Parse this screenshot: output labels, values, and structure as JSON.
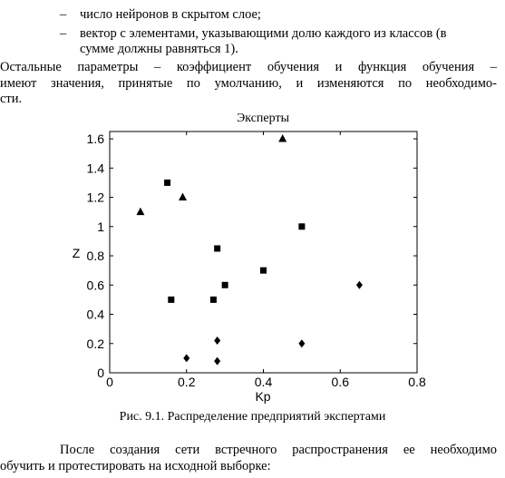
{
  "document": {
    "bullets": [
      {
        "dash": "–",
        "lines": [
          "число нейронов в скрытом слое;"
        ]
      },
      {
        "dash": "–",
        "lines": [
          "вектор с элементами, указывающими долю каждого из классов (в",
          "сумме должны равняться 1)."
        ]
      }
    ],
    "paragraph1": [
      "Остальные параметры – коэффициент обучения и функция обучения –",
      "имеют значения,  принятые по умолчанию, и изменяются по необходимо-",
      "сти."
    ],
    "caption": "Рис. 9.1. Распределение предприятий экспертами",
    "paragraph2": [
      "После создания сети встречного распространения ее необходимо",
      "обучить и протестировать на исходной выборке:"
    ]
  },
  "chart_data": {
    "type": "scatter",
    "title": "Эксперты",
    "xlabel": "Kp",
    "ylabel": "Z",
    "xlim": [
      0,
      0.8
    ],
    "ylim": [
      0,
      1.65
    ],
    "xticks": [
      "0",
      "0.2",
      "0.4",
      "0.6",
      "0.8"
    ],
    "yticks": [
      "0",
      "0.2",
      "0.4",
      "0.6",
      "0.8",
      "1",
      "1.2",
      "1.4",
      "1.6"
    ],
    "grid": false,
    "series": [
      {
        "marker": "triangle",
        "points": [
          [
            0.08,
            1.1
          ],
          [
            0.19,
            1.2
          ],
          [
            0.45,
            1.6
          ]
        ]
      },
      {
        "marker": "square",
        "points": [
          [
            0.15,
            1.3
          ],
          [
            0.28,
            0.85
          ],
          [
            0.5,
            1.0
          ],
          [
            0.4,
            0.7
          ],
          [
            0.3,
            0.6
          ],
          [
            0.16,
            0.5
          ],
          [
            0.27,
            0.5
          ]
        ]
      },
      {
        "marker": "diamond",
        "points": [
          [
            0.2,
            0.1
          ],
          [
            0.28,
            0.22
          ],
          [
            0.28,
            0.08
          ],
          [
            0.5,
            0.2
          ],
          [
            0.65,
            0.6
          ]
        ]
      }
    ]
  }
}
